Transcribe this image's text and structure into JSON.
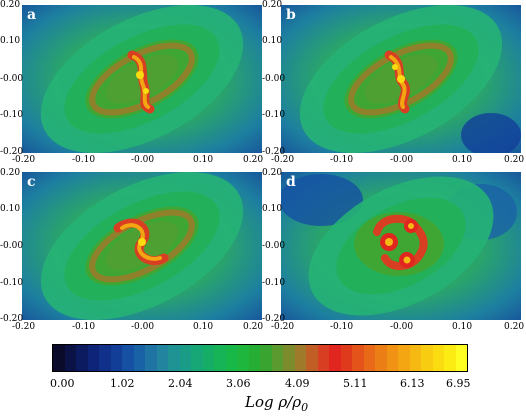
{
  "panels": [
    {
      "letter": "a",
      "x_ticks": [
        "-0.20",
        "-0.10",
        "-0.00",
        "0.10",
        "0.20"
      ],
      "y_ticks": [
        "0.20",
        "0.10",
        "-0.00",
        "-0.10",
        "-0.20"
      ]
    },
    {
      "letter": "b",
      "x_ticks": [
        "-0.20",
        "-0.10",
        "-0.00",
        "0.10",
        "0.20"
      ],
      "y_ticks": [
        "0.20",
        "0.10",
        "-0.00",
        "-0.10",
        "-0.20"
      ]
    },
    {
      "letter": "c",
      "x_ticks": [
        "-0.20",
        "-0.10",
        "-0.00",
        "0.10",
        "0.20"
      ],
      "y_ticks": [
        "0.20",
        "0.10",
        "-0.00",
        "-0.10",
        "-0.20"
      ]
    },
    {
      "letter": "d",
      "x_ticks": [
        "-0.20",
        "-0.10",
        "-0.00",
        "0.10",
        "0.20"
      ],
      "y_ticks": [
        "0.20",
        "0.10",
        "-0.00",
        "-0.10",
        "-0.20"
      ]
    }
  ],
  "colorbar": {
    "labels": [
      "0.00",
      "1.02",
      "2.04",
      "3.06",
      "4.09",
      "5.11",
      "6.13",
      "6.95"
    ],
    "title_main": "Log ρ/ρ",
    "title_sub": "0",
    "colors": [
      "#0a0a2a",
      "#0b1245",
      "#0c1a60",
      "#0e2478",
      "#10308a",
      "#123e98",
      "#1550a2",
      "#1a62a6",
      "#1f74a4",
      "#22849e",
      "#1f9294",
      "#1a9c86",
      "#17a676",
      "#16ae66",
      "#16b456",
      "#18b848",
      "#1eb63c",
      "#26ae34",
      "#3aa430",
      "#5a9a2e",
      "#7c8c2c",
      "#9e7a2a",
      "#c05e26",
      "#d83e22",
      "#e0261e",
      "#e03a1c",
      "#e4541a",
      "#e86a18",
      "#ec7e16",
      "#f09214",
      "#f4a612",
      "#f6b812",
      "#f8cc10",
      "#fadc10",
      "#fcec14",
      "#fefe22"
    ]
  }
}
